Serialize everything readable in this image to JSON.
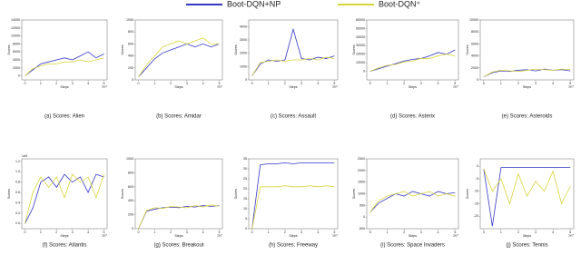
{
  "chart_data": [
    {
      "type": "line",
      "title": "(a) Scores: Alien",
      "xlabel": "Steps",
      "ylabel": "Scores",
      "x_offset_label": "1e7",
      "x": [
        0,
        0.5,
        1,
        1.5,
        2,
        2.5,
        3,
        3.5,
        4,
        4.5,
        5
      ],
      "xlim": [
        -0.2,
        5.2
      ],
      "xticks": [
        0,
        1,
        2,
        3,
        4,
        5
      ],
      "ylim": [
        -1000,
        14000
      ],
      "yticks": [
        0,
        2000,
        4000,
        6000,
        8000,
        10000,
        12000,
        14000
      ],
      "series": [
        {
          "name": "Boot-DQN+NP",
          "color": "#3535c8",
          "values": [
            0,
            1500,
            3000,
            3500,
            4000,
            4500,
            4000,
            5000,
            6000,
            4500,
            5500
          ]
        },
        {
          "name": "Boot-DQN⁺",
          "color": "#d6d43c",
          "values": [
            0,
            1800,
            2500,
            3000,
            3000,
            3500,
            3500,
            4000,
            3500,
            4000,
            4500
          ]
        }
      ]
    },
    {
      "type": "line",
      "title": "(b) Scores: Amidar",
      "xlabel": "Steps",
      "ylabel": "Scores",
      "x_offset_label": "1e7",
      "x": [
        0,
        0.5,
        1,
        1.5,
        2,
        2.5,
        3,
        3.5,
        4,
        4.5,
        5
      ],
      "xlim": [
        -0.2,
        5.2
      ],
      "xticks": [
        0,
        1,
        2,
        3,
        4,
        5
      ],
      "ylim": [
        0,
        1000
      ],
      "yticks": [
        0,
        200,
        400,
        600,
        800,
        1000
      ],
      "series": [
        {
          "name": "Boot-DQN+NP",
          "color": "#3535c8",
          "values": [
            50,
            200,
            350,
            450,
            500,
            550,
            600,
            550,
            600,
            550,
            600
          ]
        },
        {
          "name": "Boot-DQN⁺",
          "color": "#d6d43c",
          "values": [
            50,
            250,
            400,
            550,
            600,
            650,
            600,
            650,
            700,
            600,
            600
          ]
        }
      ]
    },
    {
      "type": "line",
      "title": "(c) Scores: Assault",
      "xlabel": "Steps",
      "ylabel": "Scores",
      "x_offset_label": "1e7",
      "x": [
        0,
        0.5,
        1,
        1.5,
        2,
        2.5,
        3,
        3.5,
        4,
        4.5,
        5
      ],
      "xlim": [
        -0.2,
        5.2
      ],
      "xticks": [
        0,
        1,
        2,
        3,
        4,
        5
      ],
      "ylim": [
        0,
        4500
      ],
      "yticks": [
        0,
        1000,
        2000,
        3000,
        4000
      ],
      "series": [
        {
          "name": "Boot-DQN+NP",
          "color": "#3535c8",
          "values": [
            300,
            1200,
            1500,
            1400,
            1500,
            3800,
            1600,
            1500,
            1700,
            1600,
            1800
          ]
        },
        {
          "name": "Boot-DQN⁺",
          "color": "#d6d43c",
          "values": [
            300,
            1300,
            1400,
            1500,
            1400,
            1500,
            1500,
            1600,
            1500,
            1700,
            1600
          ]
        }
      ]
    },
    {
      "type": "line",
      "title": "(d) Scores: Asterix",
      "xlabel": "Steps",
      "ylabel": "Scores",
      "x_offset_label": "1e7",
      "x": [
        0,
        0.5,
        1,
        1.5,
        2,
        2.5,
        3,
        3.5,
        4,
        4.5,
        5
      ],
      "xlim": [
        -0.2,
        5.2
      ],
      "xticks": [
        0,
        1,
        2,
        3,
        4,
        5
      ],
      "ylim": [
        -10000,
        60000
      ],
      "yticks": [
        0,
        10000,
        20000,
        30000,
        40000,
        50000,
        60000
      ],
      "series": [
        {
          "name": "Boot-DQN+NP",
          "color": "#3535c8",
          "values": [
            0,
            3000,
            6000,
            9000,
            12000,
            14000,
            15000,
            18000,
            22000,
            20000,
            25000
          ]
        },
        {
          "name": "Boot-DQN⁺",
          "color": "#d6d43c",
          "values": [
            0,
            4000,
            7000,
            8000,
            11000,
            12000,
            15000,
            15000,
            18000,
            20000,
            18000
          ]
        }
      ]
    },
    {
      "type": "line",
      "title": "(e) Scores: Asteroids",
      "xlabel": "Steps",
      "ylabel": "Scores",
      "x_offset_label": "1e7",
      "x": [
        0,
        0.5,
        1,
        1.5,
        2,
        2.5,
        3,
        3.5,
        4,
        4.5,
        5
      ],
      "xlim": [
        -0.2,
        5.2
      ],
      "xticks": [
        0,
        1,
        2,
        3,
        4,
        5
      ],
      "ylim": [
        0,
        10000
      ],
      "yticks": [
        0,
        2000,
        4000,
        6000,
        8000,
        10000
      ],
      "series": [
        {
          "name": "Boot-DQN+NP",
          "color": "#3535c8",
          "values": [
            500,
            1200,
            1500,
            1400,
            1600,
            1700,
            1500,
            1800,
            1600,
            1700,
            1500
          ]
        },
        {
          "name": "Boot-DQN⁺",
          "color": "#d6d43c",
          "values": [
            500,
            1300,
            1600,
            1500,
            1400,
            1600,
            1800,
            1700,
            1600,
            1800,
            1700
          ]
        }
      ]
    },
    {
      "type": "line",
      "title": "(f) Scores: Atlantis",
      "xlabel": "Steps",
      "ylabel": "Scores",
      "x_offset_label": "1e7",
      "y_offset_label": "1e6",
      "x": [
        0,
        0.5,
        1,
        1.5,
        2,
        2.5,
        3,
        3.5,
        4,
        4.5,
        5
      ],
      "xlim": [
        -0.2,
        5.2
      ],
      "xticks": [
        0,
        1,
        2,
        3,
        4,
        5
      ],
      "ylim": [
        -0.1,
        1.25
      ],
      "yticks": [
        {
          "value": 0,
          "label": "0.0"
        },
        0.2,
        0.4,
        0.6,
        0.8,
        {
          "value": 1,
          "label": "1.0"
        },
        1.2
      ],
      "series": [
        {
          "name": "Boot-DQN+NP",
          "color": "#3535c8",
          "values": [
            0,
            0.3,
            0.8,
            0.9,
            0.7,
            0.95,
            0.8,
            0.9,
            0.6,
            0.95,
            0.9
          ]
        },
        {
          "name": "Boot-DQN⁺",
          "color": "#d6d43c",
          "values": [
            0,
            0.6,
            0.9,
            0.7,
            0.9,
            0.5,
            0.95,
            0.8,
            0.9,
            0.5,
            0.95
          ]
        }
      ]
    },
    {
      "type": "line",
      "title": "(g) Scores: Breakout",
      "xlabel": "Steps",
      "ylabel": "Scores",
      "x_offset_label": "1e7",
      "x": [
        0,
        0.5,
        1,
        1.5,
        2,
        2.5,
        3,
        3.5,
        4,
        4.5,
        5
      ],
      "xlim": [
        -0.2,
        5.2
      ],
      "xticks": [
        0,
        1,
        2,
        3,
        4,
        5
      ],
      "ylim": [
        0,
        1000
      ],
      "yticks": [
        0,
        200,
        400,
        600,
        800,
        1000
      ],
      "series": [
        {
          "name": "Boot-DQN+NP",
          "color": "#3535c8",
          "values": [
            0,
            250,
            280,
            300,
            310,
            300,
            320,
            310,
            330,
            320,
            330
          ]
        },
        {
          "name": "Boot-DQN⁺",
          "color": "#d6d43c",
          "values": [
            0,
            260,
            300,
            290,
            320,
            310,
            300,
            330,
            310,
            340,
            320
          ]
        }
      ]
    },
    {
      "type": "line",
      "title": "(h) Scores: Freeway",
      "xlabel": "Steps",
      "ylabel": "Scores",
      "x_offset_label": "1e7",
      "x": [
        0,
        0.5,
        1,
        1.5,
        2,
        2.5,
        3,
        3.5,
        4,
        4.5,
        5
      ],
      "xlim": [
        -0.2,
        5.2
      ],
      "xticks": [
        0,
        1,
        2,
        3,
        4,
        5
      ],
      "ylim": [
        0,
        35
      ],
      "yticks": [
        0,
        5,
        10,
        15,
        20,
        25,
        30,
        35
      ],
      "series": [
        {
          "name": "Boot-DQN+NP",
          "color": "#3535c8",
          "values": [
            0,
            32,
            32.5,
            32.5,
            33,
            32.5,
            33,
            33,
            33,
            33,
            33
          ]
        },
        {
          "name": "Boot-DQN⁺",
          "color": "#d6d43c",
          "values": [
            0,
            21,
            21,
            21,
            21.5,
            21,
            21,
            21.5,
            21,
            21.5,
            21
          ]
        }
      ]
    },
    {
      "type": "line",
      "title": "(i) Scores: Space Invaders",
      "xlabel": "Steps",
      "ylabel": "Scores",
      "x_offset_label": "1e7",
      "x": [
        0,
        0.5,
        1,
        1.5,
        2,
        2.5,
        3,
        3.5,
        4,
        4.5,
        5
      ],
      "xlim": [
        -0.2,
        5.2
      ],
      "xticks": [
        0,
        1,
        2,
        3,
        4,
        5
      ],
      "ylim": [
        -500,
        2500
      ],
      "yticks": [
        -500,
        0,
        500,
        1000,
        1500,
        2000,
        2500
      ],
      "series": [
        {
          "name": "Boot-DQN+NP",
          "color": "#3535c8",
          "values": [
            200,
            600,
            800,
            1000,
            900,
            1100,
            1000,
            900,
            1100,
            1000,
            1050
          ]
        },
        {
          "name": "Boot-DQN⁺",
          "color": "#d6d43c",
          "values": [
            200,
            700,
            900,
            1000,
            1100,
            900,
            1000,
            1100,
            900,
            1000,
            900
          ]
        }
      ]
    },
    {
      "type": "line",
      "title": "(j) Scores: Tennis",
      "xlabel": "Steps",
      "ylabel": "Scores",
      "x_offset_label": "1e7",
      "x": [
        0,
        0.5,
        1,
        1.5,
        2,
        2.5,
        3,
        3.5,
        4,
        4.5,
        5
      ],
      "xlim": [
        -0.2,
        5.2
      ],
      "xticks": [
        0,
        1,
        2,
        3,
        4,
        5
      ],
      "ylim": [
        -25,
        3
      ],
      "yticks": [
        -20,
        -15,
        -10,
        -5,
        0
      ],
      "series": [
        {
          "name": "Boot-DQN+NP",
          "color": "#3535c8",
          "values": [
            -1,
            -24,
            -0.5,
            -0.5,
            -0.5,
            -0.5,
            -0.5,
            -0.5,
            -0.5,
            -0.5,
            -0.5
          ]
        },
        {
          "name": "Boot-DQN⁺",
          "color": "#d6d43c",
          "values": [
            -1,
            -10,
            -5,
            -15,
            -3,
            -12,
            -6,
            -10,
            -2,
            -15,
            -8
          ]
        }
      ]
    }
  ]
}
